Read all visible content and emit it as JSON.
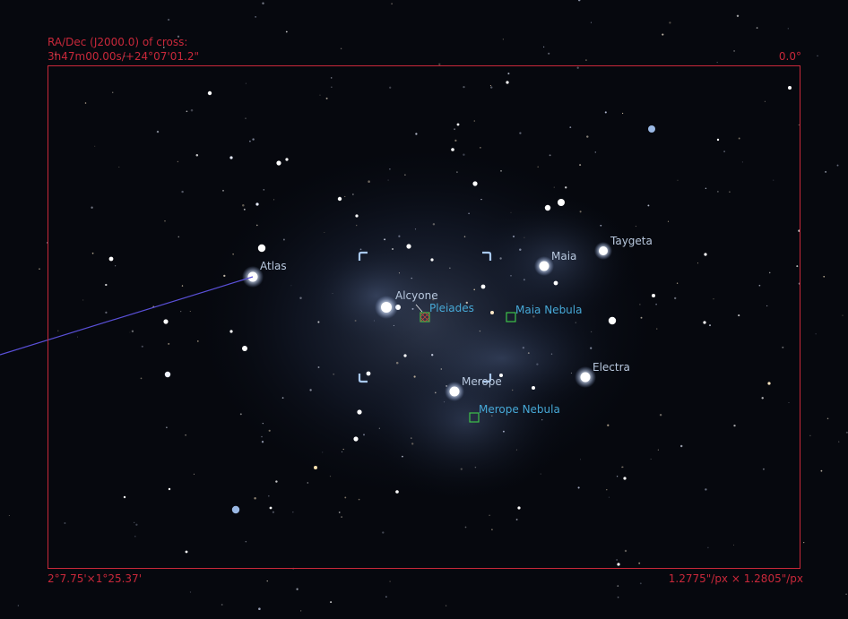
{
  "app": "Stellarium",
  "ocular_frame": {
    "coords_label": "RA/Dec (J2000.0) of cross:",
    "coords_value": "3h47m00.00s/+24°07'01.2\"",
    "rotation": "0.0°",
    "field_size": "2°7.75'×1°25.37'",
    "scale": "1.2775\"/px × 1.2805\"/px"
  },
  "stars": [
    {
      "name": "Atlas"
    },
    {
      "name": "Alcyone"
    },
    {
      "name": "Maia"
    },
    {
      "name": "Taygeta"
    },
    {
      "name": "Electra"
    },
    {
      "name": "Merope"
    }
  ],
  "deep_sky": [
    {
      "name": "Pleiades",
      "selected": true
    },
    {
      "name": "Maia Nebula",
      "selected": false
    },
    {
      "name": "Merope Nebula",
      "selected": false
    }
  ],
  "colors": {
    "frame": "#c8283a",
    "star_label": "#b8c8de",
    "dso_label": "#46a8d6",
    "dso_marker": "#3ec24a",
    "pointer": "#a8c8f0",
    "line": "#5a50d8"
  }
}
